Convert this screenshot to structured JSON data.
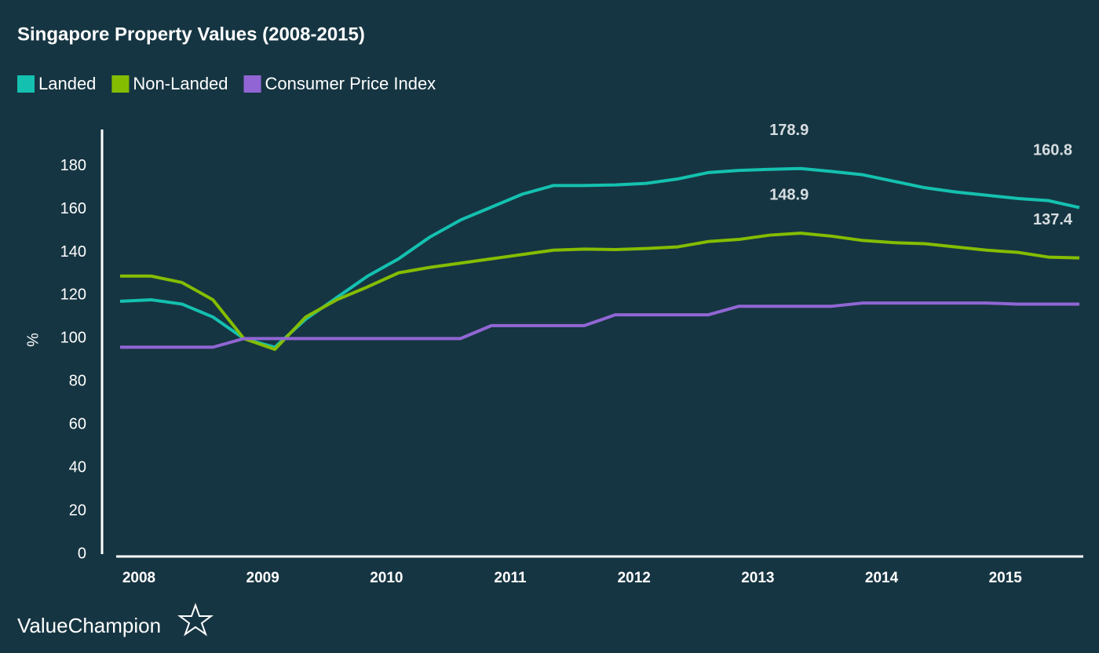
{
  "chart_data": {
    "type": "line",
    "title": "Singapore Property Values (2008-2015)",
    "y_label": "%",
    "footer": "ValueChampion",
    "categories": [
      "2008",
      null,
      null,
      null,
      "2009",
      null,
      null,
      null,
      "2010",
      null,
      null,
      null,
      "2011",
      null,
      null,
      null,
      "2012",
      null,
      null,
      null,
      "2013",
      null,
      null,
      null,
      "2014",
      null,
      null,
      null,
      "2015",
      null,
      null,
      null
    ],
    "series": [
      {
        "name": "Landed",
        "color": "#14c1b0",
        "values": [
          117.3,
          118,
          116,
          110,
          100,
          96,
          109,
          119,
          129,
          137,
          147,
          155,
          161,
          167,
          171,
          171,
          171.3,
          172,
          174,
          177,
          178,
          178.5,
          178.9,
          177.5,
          176,
          173,
          170,
          168,
          166.5,
          165,
          164,
          160.8
        ],
        "value_labels": [
          null,
          null,
          null,
          null,
          null,
          null,
          null,
          null,
          null,
          null,
          null,
          null,
          null,
          null,
          null,
          null,
          null,
          null,
          null,
          null,
          null,
          null,
          "178.9",
          null,
          null,
          null,
          null,
          null,
          null,
          null,
          null,
          "160.8"
        ]
      },
      {
        "name": "Non-Landed",
        "color": "#84bd00",
        "values": [
          129,
          129,
          126,
          118,
          100,
          95,
          110,
          118,
          124,
          130.5,
          133,
          135,
          137,
          139,
          141,
          141.5,
          141.3,
          141.8,
          142.5,
          145,
          146,
          148,
          148.9,
          147.5,
          145.5,
          144.5,
          144,
          142.5,
          141,
          140,
          137.8,
          137.4
        ],
        "value_labels": [
          null,
          null,
          null,
          null,
          null,
          null,
          null,
          null,
          null,
          null,
          null,
          null,
          null,
          null,
          null,
          null,
          null,
          null,
          null,
          null,
          null,
          null,
          "148.9",
          null,
          null,
          null,
          null,
          null,
          null,
          null,
          null,
          "137.4"
        ]
      },
      {
        "name": "Consumer Price Index",
        "color": "#9166d4",
        "values": [
          96,
          96,
          96,
          96,
          100,
          100,
          100,
          100,
          100,
          100,
          100,
          100,
          106,
          106,
          106,
          106,
          111,
          111,
          111,
          111,
          115,
          115,
          115,
          115,
          116.5,
          116.5,
          116.5,
          116.5,
          116.5,
          116,
          116,
          116
        ]
      }
    ],
    "ylim": [
      0,
      197
    ],
    "yticks": [
      0,
      20,
      40,
      60,
      80,
      100,
      120,
      140,
      160,
      180
    ],
    "grid": false
  }
}
